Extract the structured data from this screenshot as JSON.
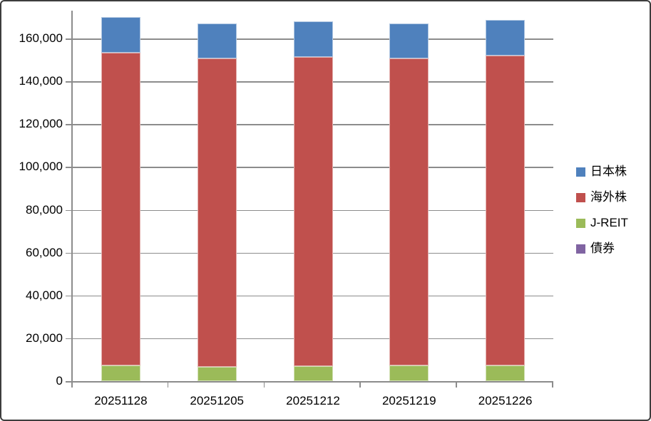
{
  "chart_data": {
    "type": "bar",
    "stacked": true,
    "title": "",
    "xlabel": "",
    "ylabel": "",
    "categories": [
      "20251128",
      "20251205",
      "20251212",
      "20251219",
      "20251226"
    ],
    "series": [
      {
        "name": "日本株",
        "color": "#4F81BD",
        "values": [
          16700,
          16300,
          16700,
          16300,
          16600
        ]
      },
      {
        "name": "海外株",
        "color": "#C0504D",
        "values": [
          146000,
          144000,
          144300,
          143400,
          144700
        ]
      },
      {
        "name": "J-REIT",
        "color": "#9BBB59",
        "values": [
          7300,
          6700,
          7000,
          7300,
          7300
        ]
      },
      {
        "name": "債券",
        "color": "#8064A2",
        "values": [
          0,
          0,
          0,
          0,
          0
        ]
      }
    ],
    "stack_bottom_to_top": [
      "債券",
      "J-REIT",
      "海外株",
      "日本株"
    ],
    "ylim": [
      0,
      173000
    ],
    "yticks": [
      0,
      20000,
      40000,
      60000,
      80000,
      100000,
      120000,
      140000,
      160000
    ],
    "ytick_labels": [
      "0",
      "20,000",
      "40,000",
      "60,000",
      "80,000",
      "100,000",
      "120,000",
      "140,000",
      "160,000"
    ],
    "grid": true,
    "legend_position": "right",
    "legend": [
      "日本株",
      "海外株",
      "J-REIT",
      "債券"
    ]
  },
  "colors": {
    "background": "#FFFFFF",
    "frame_border": "#3D3D3D",
    "axis": "#8C8C8C",
    "gridline": "#8C8C8C",
    "text": "#000000"
  }
}
